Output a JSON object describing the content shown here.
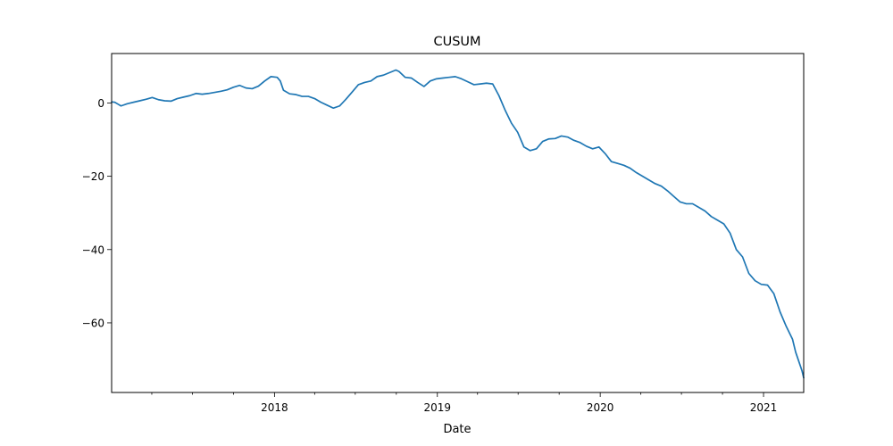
{
  "chart_data": {
    "type": "line",
    "title": "CUSUM",
    "xlabel": "Date",
    "ylabel": "",
    "xlim": [
      "2017-01-01",
      "2021-04-01"
    ],
    "ylim": [
      -79,
      13.5
    ],
    "x_ticks": [
      "2018-01-01",
      "2019-01-01",
      "2020-01-01",
      "2021-01-01"
    ],
    "x_tick_labels": [
      "2018",
      "2019",
      "2020",
      "2021"
    ],
    "y_ticks": [
      0,
      -20,
      -40,
      -60
    ],
    "y_tick_labels": [
      "0",
      "−20",
      "−40",
      "−60"
    ],
    "grid": false,
    "legend": "none",
    "line_color": "#1f77b4",
    "series": [
      {
        "x": [
          "2017-01-01",
          "2017-01-08",
          "2017-01-15",
          "2017-01-22",
          "2017-02-05",
          "2017-02-19",
          "2017-03-05",
          "2017-03-19",
          "2017-04-02",
          "2017-04-16",
          "2017-04-30",
          "2017-05-14",
          "2017-05-28",
          "2017-06-11",
          "2017-06-25",
          "2017-07-09",
          "2017-07-23",
          "2017-08-06",
          "2017-08-20",
          "2017-09-03",
          "2017-09-17",
          "2017-10-01",
          "2017-10-15",
          "2017-10-29",
          "2017-11-12",
          "2017-11-26",
          "2017-12-10",
          "2017-12-24",
          "2018-01-07",
          "2018-01-14",
          "2018-01-21",
          "2018-02-04",
          "2018-02-18",
          "2018-03-04",
          "2018-03-18",
          "2018-04-01",
          "2018-04-15",
          "2018-04-29",
          "2018-05-13",
          "2018-05-27",
          "2018-06-10",
          "2018-06-24",
          "2018-07-08",
          "2018-07-22",
          "2018-08-05",
          "2018-08-19",
          "2018-09-02",
          "2018-09-16",
          "2018-09-30",
          "2018-10-07",
          "2018-10-21",
          "2018-11-04",
          "2018-11-18",
          "2018-12-02",
          "2018-12-16",
          "2018-12-30",
          "2019-01-13",
          "2019-01-27",
          "2019-02-10",
          "2019-02-24",
          "2019-03-10",
          "2019-03-24",
          "2019-04-07",
          "2019-04-21",
          "2019-05-05",
          "2019-05-19",
          "2019-06-02",
          "2019-06-16",
          "2019-06-30",
          "2019-07-14",
          "2019-07-28",
          "2019-08-11",
          "2019-08-25",
          "2019-09-08",
          "2019-09-22",
          "2019-10-06",
          "2019-10-20",
          "2019-11-03",
          "2019-11-17",
          "2019-12-01",
          "2019-12-15",
          "2019-12-29",
          "2020-01-12",
          "2020-01-26",
          "2020-02-09",
          "2020-02-23",
          "2020-03-08",
          "2020-03-22",
          "2020-04-05",
          "2020-04-19",
          "2020-05-03",
          "2020-05-17",
          "2020-05-31",
          "2020-06-14",
          "2020-06-28",
          "2020-07-12",
          "2020-07-26",
          "2020-08-09",
          "2020-08-23",
          "2020-09-06",
          "2020-09-20",
          "2020-10-04",
          "2020-10-18",
          "2020-11-01",
          "2020-11-15",
          "2020-11-29",
          "2020-12-13",
          "2020-12-27",
          "2021-01-10",
          "2021-01-24",
          "2021-02-07",
          "2021-02-21",
          "2021-03-07",
          "2021-03-14",
          "2021-03-21",
          "2021-03-28",
          "2021-04-01"
        ],
        "y": [
          0.3,
          0.2,
          -0.3,
          -0.8,
          -0.2,
          0.2,
          0.6,
          1.0,
          1.5,
          0.9,
          0.6,
          0.5,
          1.2,
          1.6,
          2.0,
          2.6,
          2.4,
          2.6,
          2.9,
          3.2,
          3.6,
          4.3,
          4.8,
          4.1,
          3.9,
          4.6,
          6.0,
          7.2,
          7.0,
          6.0,
          3.5,
          2.5,
          2.3,
          1.8,
          1.8,
          1.2,
          0.2,
          -0.6,
          -1.4,
          -0.8,
          1.0,
          3.0,
          5.0,
          5.6,
          6.0,
          7.2,
          7.6,
          8.3,
          9.0,
          8.6,
          7.0,
          6.8,
          5.6,
          4.5,
          6.0,
          6.6,
          6.8,
          7.0,
          7.2,
          6.6,
          5.8,
          5.0,
          5.2,
          5.4,
          5.2,
          2.0,
          -2.0,
          -5.5,
          -8.0,
          -12.0,
          -13.0,
          -12.5,
          -10.5,
          -9.8,
          -9.7,
          -9.0,
          -9.3,
          -10.2,
          -10.8,
          -11.8,
          -12.5,
          -12.0,
          -13.8,
          -16.0,
          -16.5,
          -17.0,
          -17.8,
          -19.0,
          -20.0,
          -21.0,
          -22.0,
          -22.7,
          -24.0,
          -25.5,
          -27.0,
          -27.5,
          -27.5,
          -28.5,
          -29.5,
          -31.0,
          -32.0,
          -33.0,
          -35.5,
          -40.0,
          -42.0,
          -46.5,
          -48.5,
          -49.5,
          -49.7,
          -52.0,
          -57.0,
          -61.0,
          -64.5,
          -68.0,
          -70.5,
          -73.0,
          -75.0
        ]
      }
    ]
  }
}
